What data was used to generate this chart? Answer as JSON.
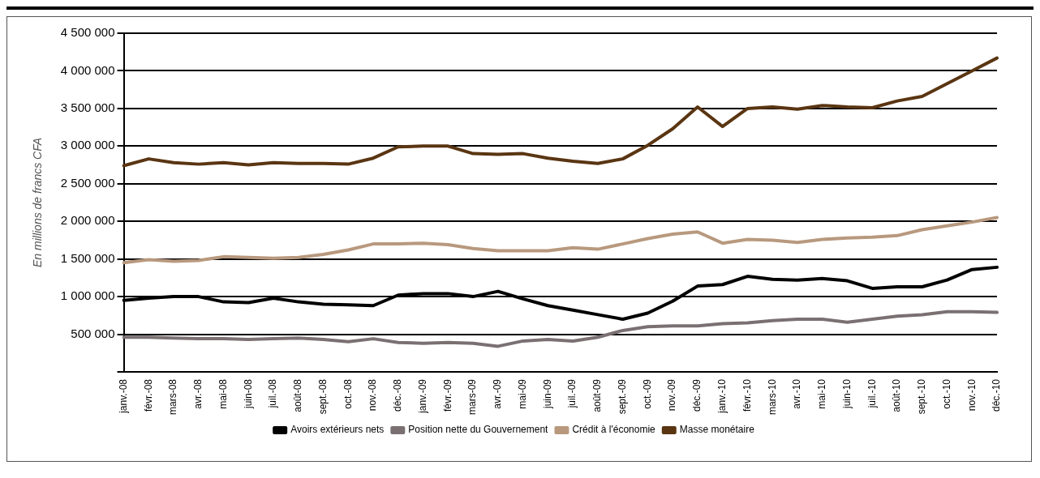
{
  "chart_data": {
    "type": "line",
    "ylabel": "En millions de francs CFA",
    "categories": [
      "janv.-08",
      "févr.-08",
      "mars-08",
      "avr.-08",
      "mai-08",
      "juin-08",
      "juil.-08",
      "août-08",
      "sept.-08",
      "oct.-08",
      "nov.-08",
      "déc.-08",
      "janv.-09",
      "févr.-09",
      "mars-09",
      "avr.-09",
      "mai-09",
      "juin-09",
      "juil.-09",
      "août-09",
      "sept.-09",
      "oct.-09",
      "nov.-09",
      "déc.-09",
      "janv.-10",
      "févr.-10",
      "mars-10",
      "avr.-10",
      "mai-10",
      "juin-10",
      "juil.-10",
      "août-10",
      "sept.-10",
      "oct.-10",
      "nov.-10",
      "déc.-10"
    ],
    "series": [
      {
        "name": "Avoirs extérieurs nets",
        "color": "#000000",
        "values": [
          950000,
          980000,
          1000000,
          1000000,
          930000,
          920000,
          980000,
          930000,
          900000,
          890000,
          880000,
          1020000,
          1040000,
          1040000,
          1000000,
          1070000,
          970000,
          880000,
          820000,
          760000,
          700000,
          780000,
          940000,
          1140000,
          1160000,
          1270000,
          1230000,
          1220000,
          1240000,
          1210000,
          1110000,
          1130000,
          1130000,
          1220000,
          1360000,
          1390000
        ]
      },
      {
        "name": "Position nette du Gouvernement",
        "color": "#7a7072",
        "values": [
          460000,
          460000,
          450000,
          440000,
          440000,
          430000,
          440000,
          450000,
          430000,
          400000,
          440000,
          390000,
          380000,
          390000,
          380000,
          340000,
          410000,
          430000,
          410000,
          460000,
          550000,
          600000,
          610000,
          610000,
          640000,
          650000,
          680000,
          700000,
          700000,
          660000,
          700000,
          740000,
          760000,
          800000,
          800000,
          790000
        ]
      },
      {
        "name": "Crédit à l'économie",
        "color": "#b8997e",
        "values": [
          1450000,
          1490000,
          1470000,
          1480000,
          1530000,
          1520000,
          1510000,
          1520000,
          1560000,
          1620000,
          1700000,
          1700000,
          1710000,
          1690000,
          1640000,
          1610000,
          1610000,
          1610000,
          1650000,
          1630000,
          1700000,
          1770000,
          1830000,
          1860000,
          1710000,
          1760000,
          1750000,
          1720000,
          1760000,
          1780000,
          1790000,
          1810000,
          1890000,
          1940000,
          1990000,
          2050000
        ]
      },
      {
        "name": "Masse monétaire",
        "color": "#5a3512",
        "values": [
          2740000,
          2830000,
          2780000,
          2760000,
          2780000,
          2750000,
          2780000,
          2770000,
          2770000,
          2760000,
          2840000,
          2990000,
          3000000,
          3000000,
          2900000,
          2890000,
          2900000,
          2840000,
          2800000,
          2770000,
          2830000,
          3010000,
          3230000,
          3520000,
          3260000,
          3500000,
          3520000,
          3490000,
          3540000,
          3520000,
          3510000,
          3600000,
          3660000,
          3830000,
          4000000,
          4170000
        ]
      }
    ],
    "ylim": [
      0,
      4500000
    ],
    "yticks": [
      {
        "value": 0,
        "label": null
      },
      {
        "value": 500000,
        "label": "500 000"
      },
      {
        "value": 1000000,
        "label": "1 000 000"
      },
      {
        "value": 1500000,
        "label": "1 500 000"
      },
      {
        "value": 2000000,
        "label": "2 000 000"
      },
      {
        "value": 2500000,
        "label": "2 500 000"
      },
      {
        "value": 3000000,
        "label": "3 000 000"
      },
      {
        "value": 3500000,
        "label": "3 500 000"
      },
      {
        "value": 4000000,
        "label": "4 000 000"
      },
      {
        "value": 4500000,
        "label": "4 500 000"
      }
    ],
    "grid": "y",
    "legend": "bottom",
    "marker": "none",
    "line_style": "solid"
  }
}
